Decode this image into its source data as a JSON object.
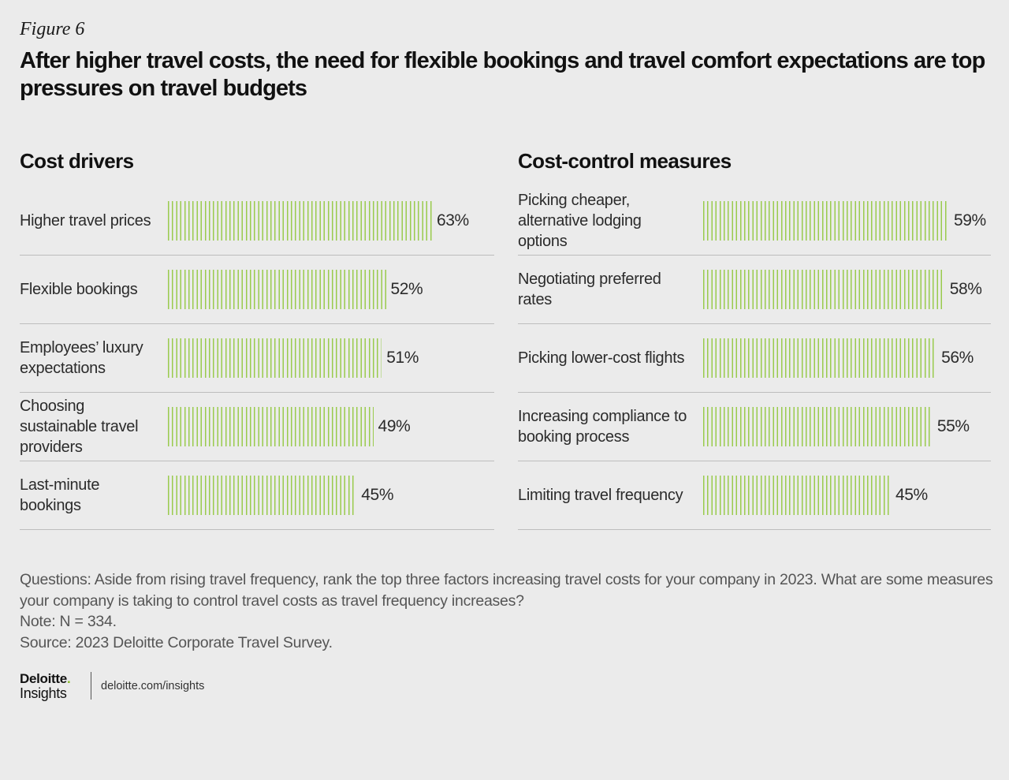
{
  "figure_label": "Figure 6",
  "title": "After higher travel costs, the need for flexible bookings and travel comfort expectations are top pressures on travel budgets",
  "colors": {
    "bar": "#9acb4d",
    "background": "#ebebeb",
    "accent": "#86bc25"
  },
  "chart_data": [
    {
      "type": "bar",
      "orientation": "horizontal",
      "title": "Cost drivers",
      "categories": [
        "Higher travel prices",
        "Flexible bookings",
        "Employees’ luxury expectations",
        "Choosing sustainable travel providers",
        "Last-minute bookings"
      ],
      "values": [
        63,
        52,
        51,
        49,
        45
      ],
      "value_labels": [
        "63%",
        "52%",
        "51%",
        "49%",
        "45%"
      ],
      "unit": "%"
    },
    {
      "type": "bar",
      "orientation": "horizontal",
      "title": "Cost-control measures",
      "categories": [
        "Picking cheaper, alternative lodging options",
        "Negotiating preferred rates",
        "Picking lower-cost flights",
        "Increasing compliance to booking process",
        "Limiting travel frequency"
      ],
      "values": [
        59,
        58,
        56,
        55,
        45
      ],
      "value_labels": [
        "59%",
        "58%",
        "56%",
        "55%",
        "45%"
      ],
      "unit": "%"
    }
  ],
  "footnote": {
    "questions": "Questions: Aside from rising travel frequency, rank the top three factors increasing travel costs for your company in 2023. What are some measures your company is taking to control travel costs as travel frequency increases?",
    "note": "Note: N = 334.",
    "source": "Source: 2023 Deloitte Corporate Travel Survey."
  },
  "brand": {
    "name": "Deloitte",
    "dot": ".",
    "sub": "Insights",
    "url": "deloitte.com/insights"
  }
}
